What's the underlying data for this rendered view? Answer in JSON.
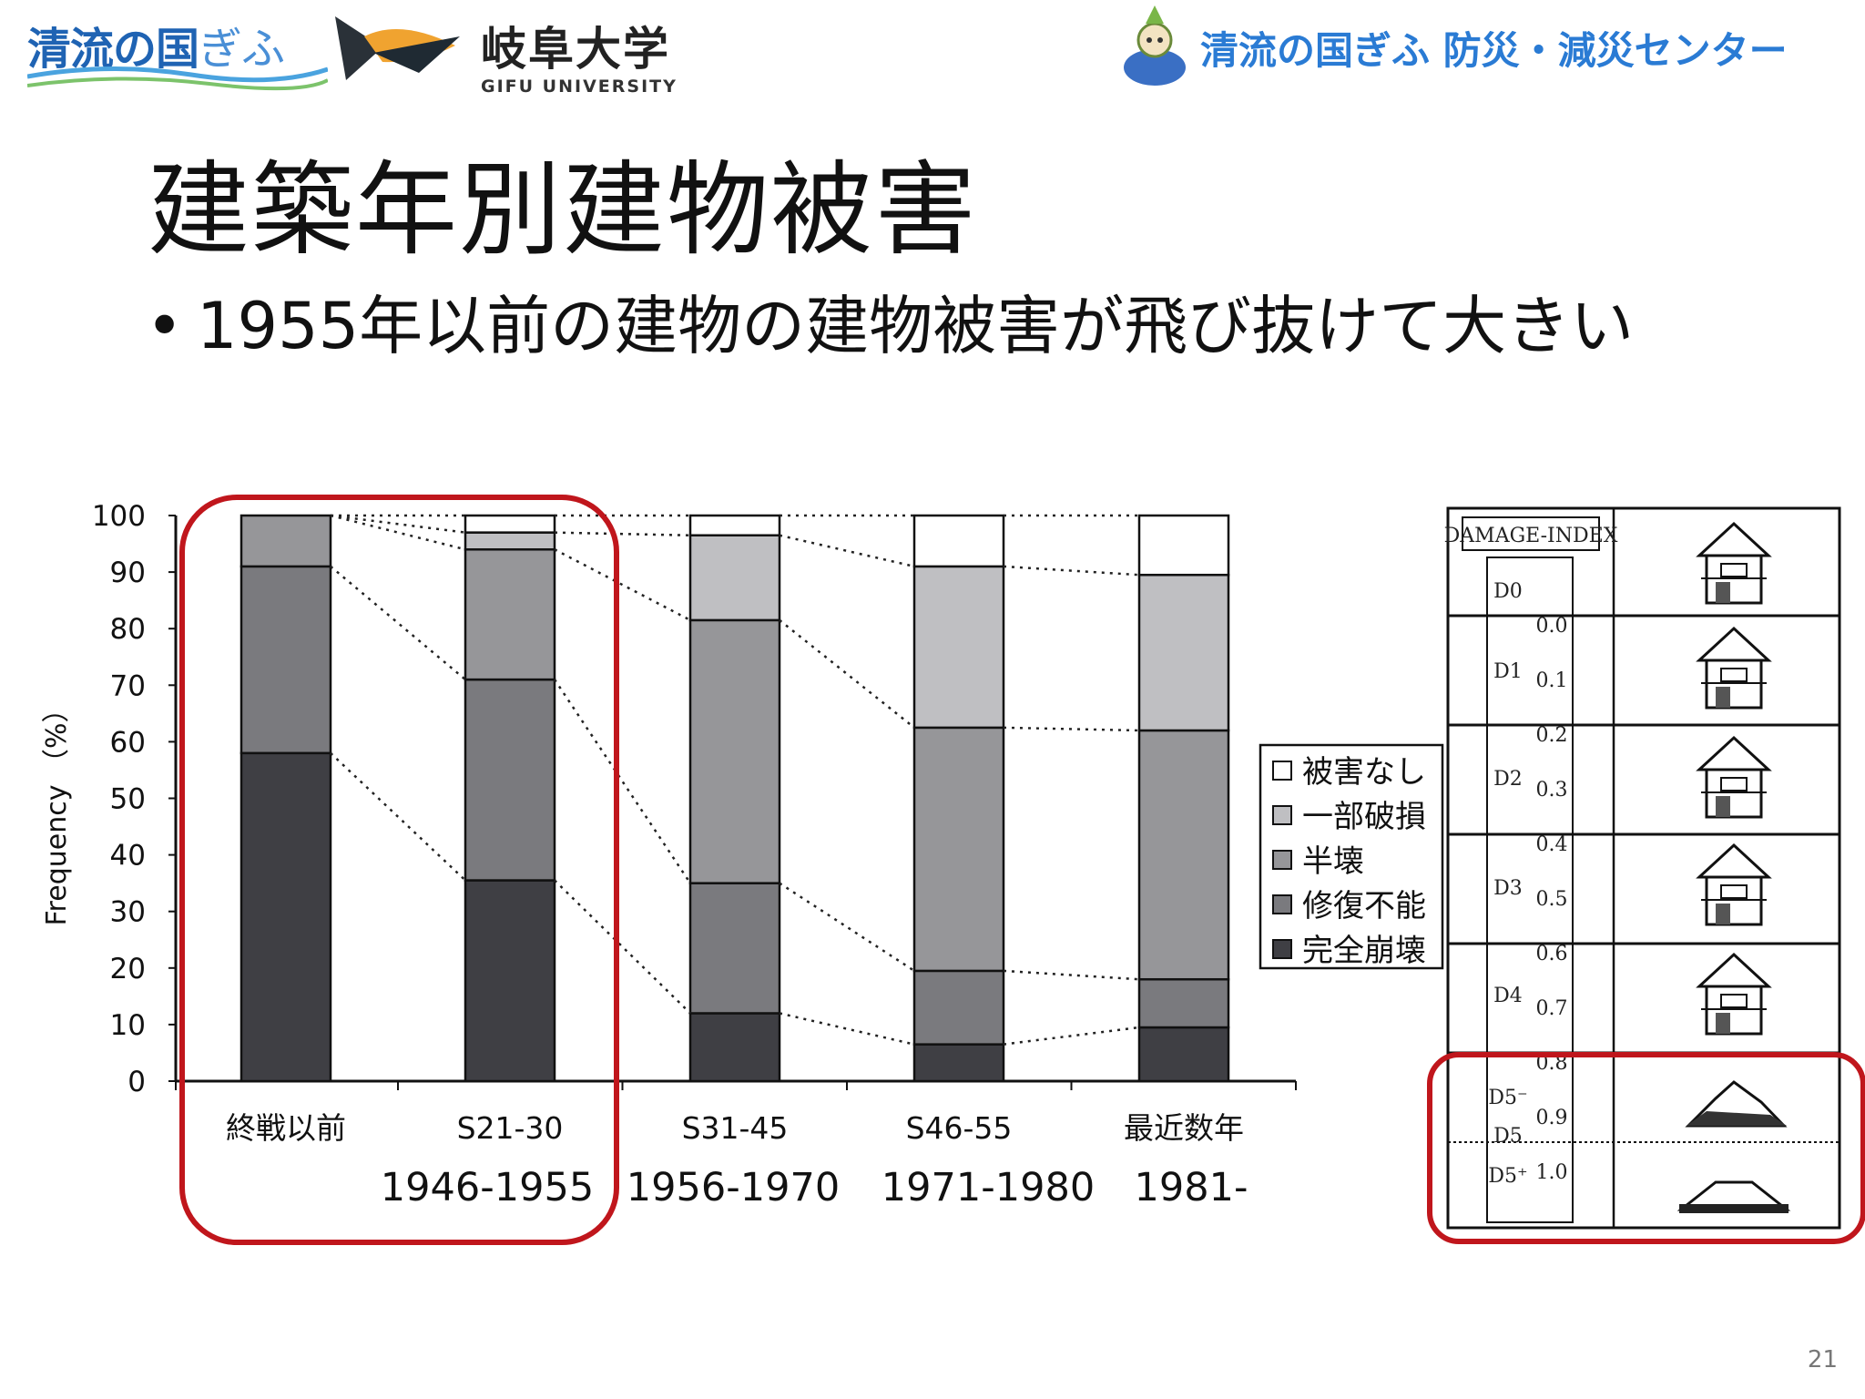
{
  "header": {
    "logo_seiryu_kanji": "清流の国",
    "logo_seiryu_kana": "ぎふ",
    "university_name_jp": "岐阜大学",
    "university_name_en": "GIFU UNIVERSITY",
    "center_name": "清流の国ぎふ 防災・減災センター"
  },
  "slide": {
    "title": "建築年別建物被害",
    "bullet_symbol": "•",
    "bullet_text": "1955年以前の建物の建物被害が飛び抜けて大きい",
    "page_number": "21"
  },
  "chart_data": {
    "type": "bar",
    "stacked": true,
    "ylabel": "Frequency （%）",
    "xlabel": "",
    "ylim": [
      0,
      100
    ],
    "yticks": [
      "0",
      "10",
      "20",
      "30",
      "40",
      "50",
      "60",
      "70",
      "80",
      "90",
      "100"
    ],
    "categories": [
      "終戦以前",
      "S21-30",
      "S31-45",
      "S46-55",
      "最近数年"
    ],
    "year_labels": [
      "",
      "1946-1955",
      "1956-1970",
      "1971-1980",
      "1981-"
    ],
    "legend_position": "right",
    "series": [
      {
        "name": "完全崩壊",
        "color": "#3f3f44",
        "values": [
          58,
          35.5,
          12,
          6.5,
          9.5
        ]
      },
      {
        "name": "修復不能",
        "color": "#7a7a7e",
        "values": [
          33,
          35.5,
          23,
          13,
          8.5
        ]
      },
      {
        "name": "半壊",
        "color": "#969699",
        "values": [
          9,
          23,
          46.5,
          43,
          44
        ]
      },
      {
        "name": "一部破損",
        "color": "#bfbfc2",
        "values": [
          0,
          3,
          15,
          28.5,
          27.5
        ]
      },
      {
        "name": "被害なし",
        "color": "#ffffff",
        "values": [
          0,
          3,
          3.5,
          9,
          10.5
        ]
      }
    ],
    "legend": [
      "被害なし",
      "一部破損",
      "半壊",
      "修復不能",
      "完全崩壊"
    ]
  },
  "damage_index": {
    "header": "DAMAGE-INDEX",
    "levels": [
      "D0",
      "D1",
      "D2",
      "D3",
      "D4",
      "D5⁻",
      "D5",
      "D5⁺"
    ],
    "scale": [
      "0.0",
      "0.1",
      "0.2",
      "0.3",
      "0.4",
      "0.5",
      "0.6",
      "0.7",
      "0.8",
      "0.9",
      "1.0"
    ]
  },
  "colors": {
    "highlight": "#c0161c",
    "accent_blue": "#2a7bd4"
  }
}
